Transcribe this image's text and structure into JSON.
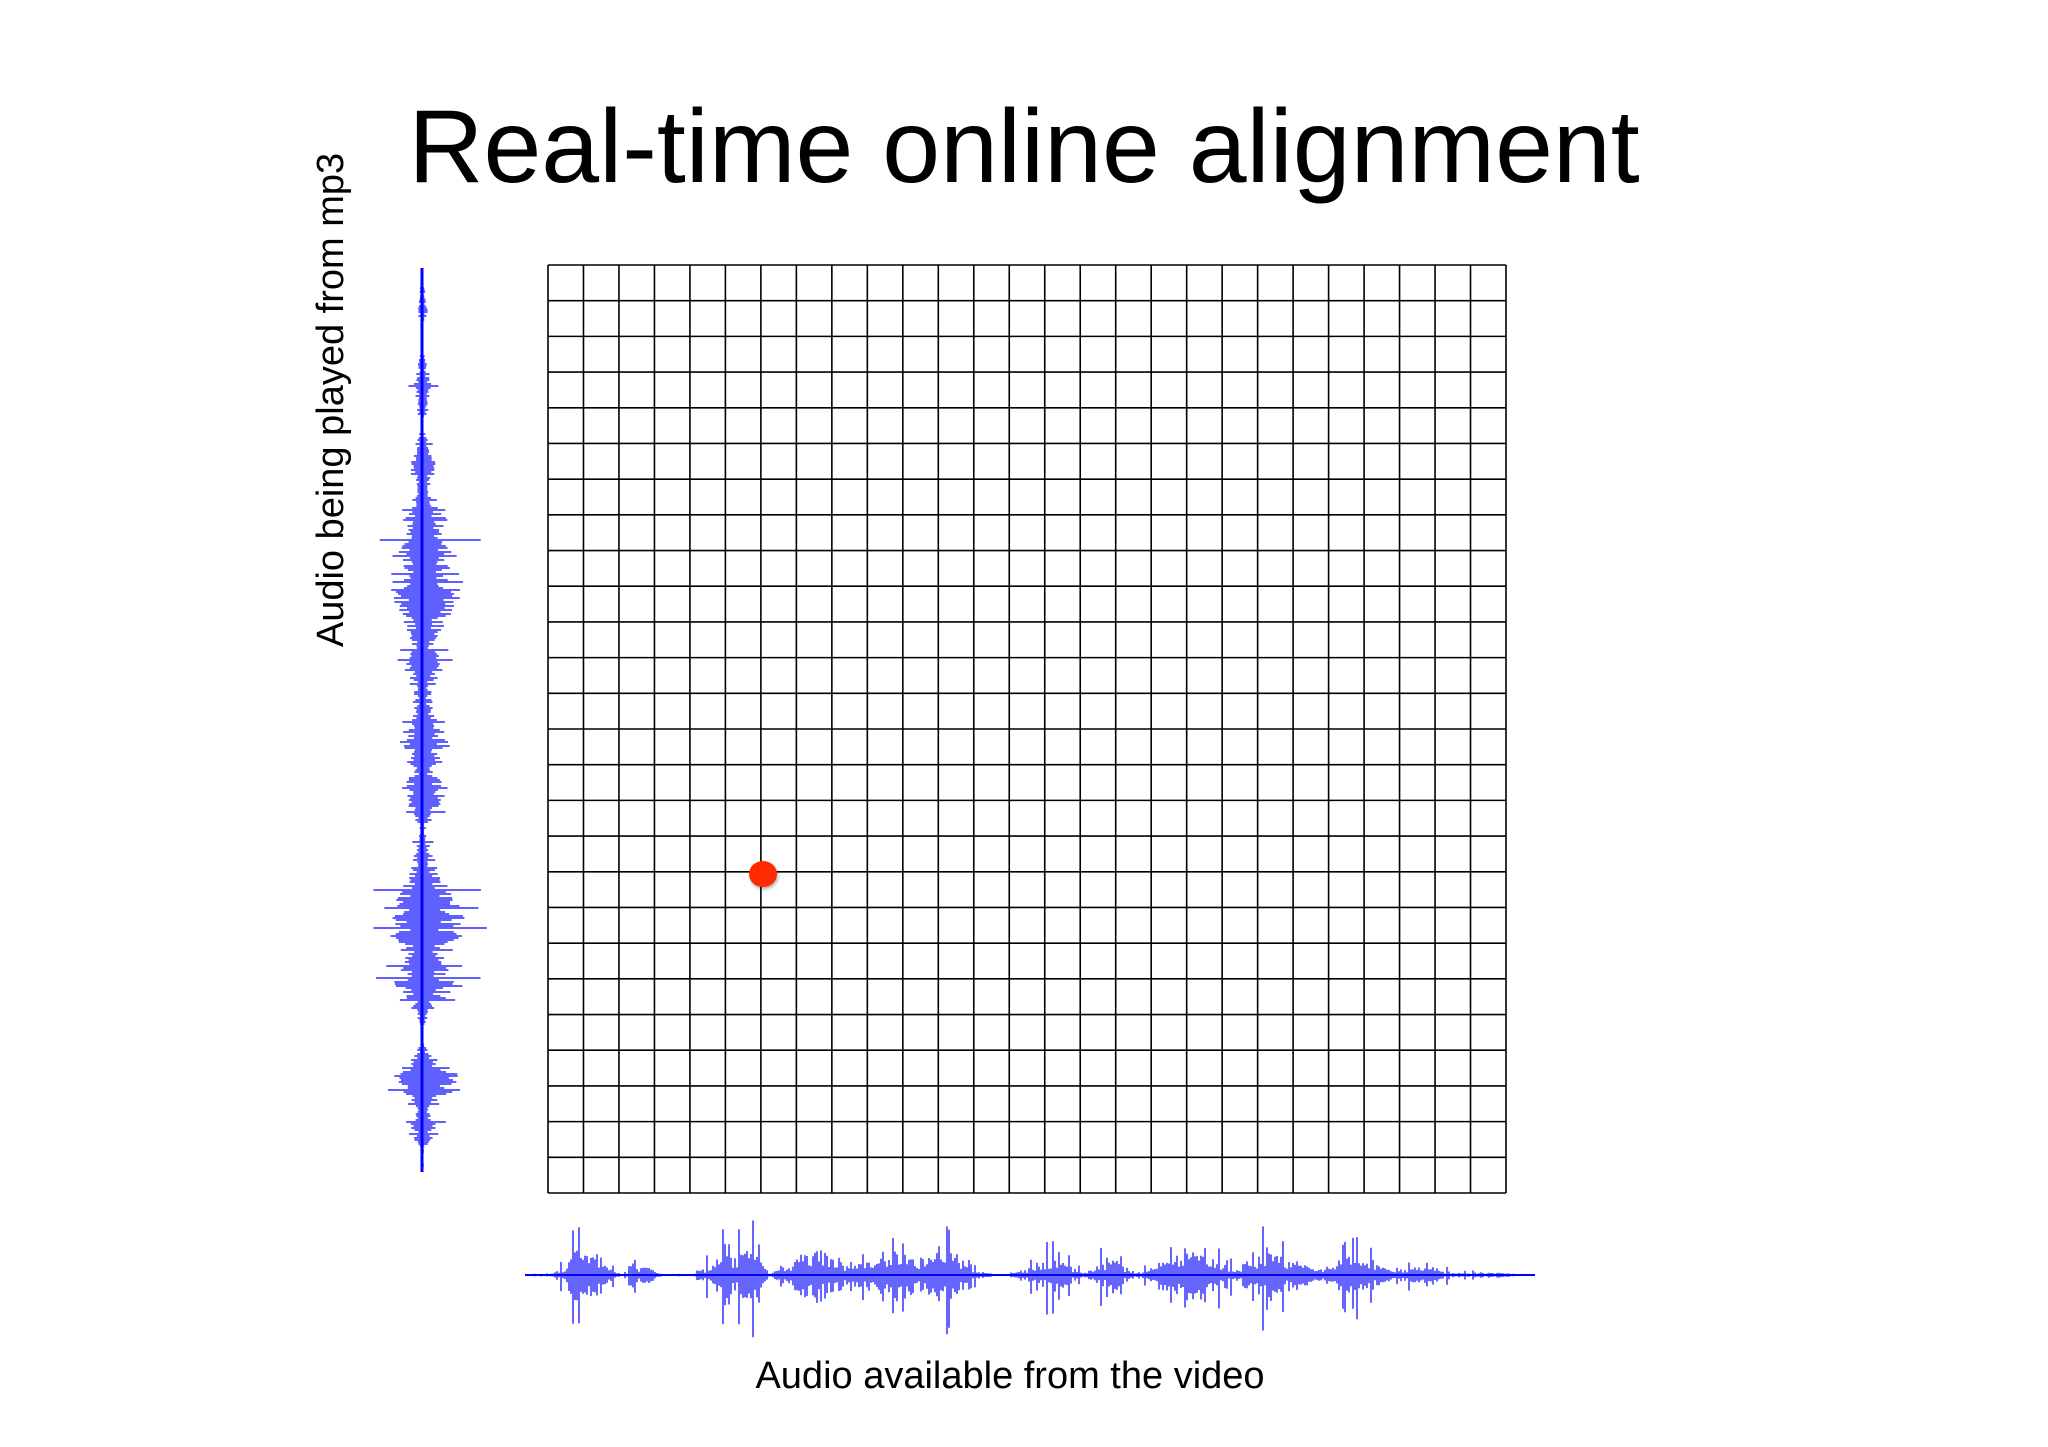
{
  "title": "Real-time online alignment",
  "y_axis_label": "Audio being played from mp3",
  "x_axis_label": "Audio available from the video",
  "grid": {
    "columns": 27,
    "rows": 26,
    "line_color": "#000000"
  },
  "current_point": {
    "column": 6,
    "row": 17,
    "color": "#ff2a00"
  },
  "waveform_color": "#0000ff"
}
